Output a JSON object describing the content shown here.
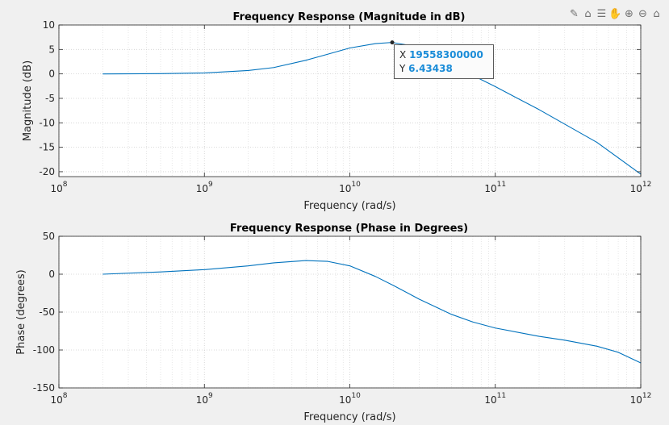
{
  "toolbar": {
    "icons": [
      "brush-icon",
      "datatip-icon",
      "legend-icon",
      "pan-icon",
      "zoom-in-icon",
      "zoom-out-icon",
      "home-icon"
    ]
  },
  "datatip": {
    "x_label": "X",
    "x_value": "19558300000",
    "y_label": "Y",
    "y_value": "6.43438"
  },
  "chart_data": [
    {
      "type": "line",
      "title": "Frequency Response (Magnitude in dB)",
      "xlabel": "Frequency (rad/s)",
      "ylabel": "Magnitude (dB)",
      "xscale": "log",
      "xlim": [
        100000000,
        1000000000000
      ],
      "ylim": [
        -21,
        10
      ],
      "xticks": [
        100000000,
        1000000000,
        10000000000,
        100000000000,
        1000000000000
      ],
      "xtick_labels": [
        [
          "10",
          "8"
        ],
        [
          "10",
          "9"
        ],
        [
          "10",
          "10"
        ],
        [
          "10",
          "11"
        ],
        [
          "10",
          "12"
        ]
      ],
      "yticks": [
        10,
        5,
        0,
        -5,
        -10,
        -15,
        -20
      ],
      "ytick_labels": [
        "10",
        "5",
        "0",
        "-5",
        "-10",
        "-15",
        "-20"
      ],
      "grid": true,
      "line_color": "#0072bd",
      "series": [
        {
          "x": [
            200000000,
            500000000,
            1000000000,
            2000000000,
            3000000000,
            5000000000,
            7000000000,
            10000000000,
            15000000000,
            19558300000,
            25000000000,
            35000000000,
            50000000000,
            70000000000,
            100000000000,
            200000000000,
            500000000000,
            1000000000000
          ],
          "y": [
            0,
            0.05,
            0.2,
            0.7,
            1.3,
            2.8,
            4.0,
            5.3,
            6.2,
            6.43438,
            5.9,
            4.0,
            1.8,
            -0.3,
            -2.6,
            -7.3,
            -14.0,
            -20.5
          ]
        }
      ],
      "marker": {
        "x": 19558300000,
        "y": 6.43438
      }
    },
    {
      "type": "line",
      "title": "Frequency Response (Phase in Degrees)",
      "xlabel": "Frequency (rad/s)",
      "ylabel": "Phase (degrees)",
      "xscale": "log",
      "xlim": [
        100000000,
        1000000000000
      ],
      "ylim": [
        -150,
        50
      ],
      "xticks": [
        100000000,
        1000000000,
        10000000000,
        100000000000,
        1000000000000
      ],
      "xtick_labels": [
        [
          "10",
          "8"
        ],
        [
          "10",
          "9"
        ],
        [
          "10",
          "10"
        ],
        [
          "10",
          "11"
        ],
        [
          "10",
          "12"
        ]
      ],
      "yticks": [
        50,
        0,
        -50,
        -100,
        -150
      ],
      "ytick_labels": [
        "50",
        "0",
        "-50",
        "-100",
        "-150"
      ],
      "grid": true,
      "line_color": "#0072bd",
      "series": [
        {
          "x": [
            200000000,
            500000000,
            1000000000,
            2000000000,
            3000000000,
            5000000000,
            7000000000,
            10000000000,
            15000000000,
            20000000000,
            30000000000,
            50000000000,
            70000000000,
            100000000000,
            200000000000,
            300000000000,
            500000000000,
            700000000000,
            1000000000000
          ],
          "y": [
            0,
            3,
            6,
            11,
            15,
            18,
            17,
            11,
            -3,
            -15,
            -33,
            -53,
            -63,
            -71,
            -82,
            -87,
            -95,
            -103,
            -117
          ]
        }
      ]
    }
  ]
}
